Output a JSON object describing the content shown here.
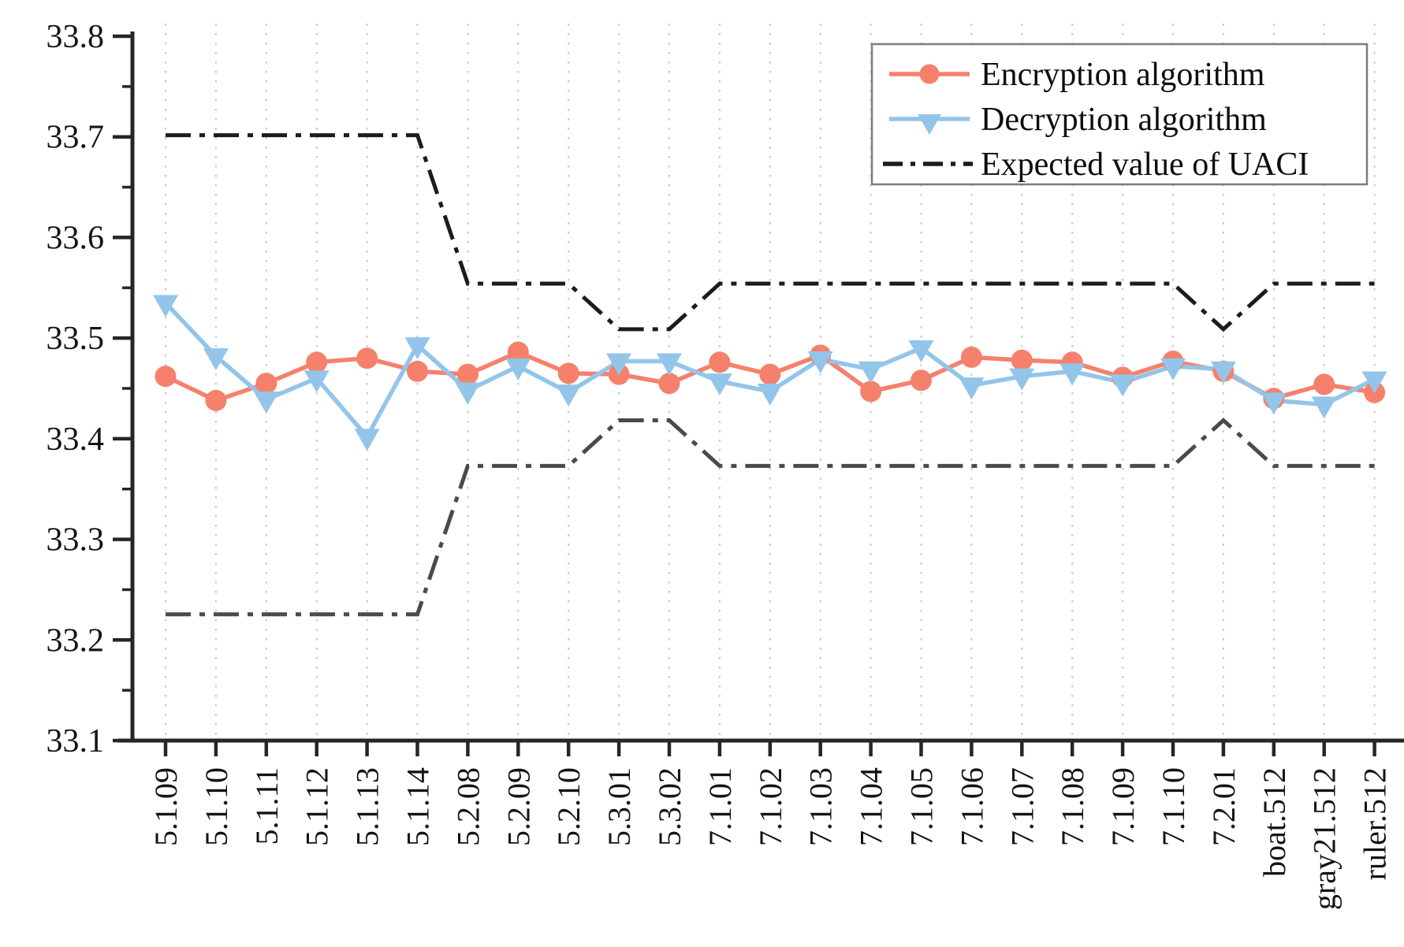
{
  "chart_data": {
    "type": "line",
    "title": "",
    "categories": [
      "5.1.09",
      "5.1.10",
      "5.1.11",
      "5.1.12",
      "5.1.13",
      "5.1.14",
      "5.2.08",
      "5.2.09",
      "5.2.10",
      "5.3.01",
      "5.3.02",
      "7.1.01",
      "7.1.02",
      "7.1.03",
      "7.1.04",
      "7.1.05",
      "7.1.06",
      "7.1.07",
      "7.1.08",
      "7.1.09",
      "7.1.10",
      "7.2.01",
      "boat.512",
      "gray21.512",
      "ruler.512"
    ],
    "series": [
      {
        "name": "Encryption algorithm",
        "marker": "circle",
        "color": "#F5816C",
        "values": [
          33.462,
          33.438,
          33.455,
          33.476,
          33.48,
          33.467,
          33.464,
          33.486,
          33.465,
          33.464,
          33.455,
          33.476,
          33.464,
          33.483,
          33.447,
          33.458,
          33.481,
          33.478,
          33.476,
          33.461,
          33.477,
          33.467,
          33.44,
          33.454,
          33.446
        ]
      },
      {
        "name": "Decryption algorithm",
        "marker": "triangle-down",
        "color": "#93C5EA",
        "values": [
          33.535,
          33.482,
          33.439,
          33.46,
          33.402,
          33.493,
          33.448,
          33.472,
          33.446,
          33.477,
          33.477,
          33.457,
          33.447,
          33.479,
          33.469,
          33.49,
          33.453,
          33.462,
          33.467,
          33.456,
          33.472,
          33.469,
          33.438,
          33.434,
          33.459
        ]
      }
    ],
    "expected_value": {
      "name": "Expected value of UACI",
      "line_style": "dash-dot",
      "upper_color": "#1c1c1c",
      "lower_color": "#4a4a4a",
      "upper": [
        33.7016,
        33.7016,
        33.7016,
        33.7016,
        33.7016,
        33.7016,
        33.5541,
        33.5541,
        33.5541,
        33.5088,
        33.5088,
        33.5541,
        33.5541,
        33.5541,
        33.5541,
        33.5541,
        33.5541,
        33.5541,
        33.5541,
        33.5541,
        33.5541,
        33.5088,
        33.5541,
        33.5541,
        33.5541
      ],
      "lower": [
        33.2255,
        33.2255,
        33.2255,
        33.2255,
        33.2255,
        33.2255,
        33.373,
        33.373,
        33.373,
        33.4183,
        33.4183,
        33.373,
        33.373,
        33.373,
        33.373,
        33.373,
        33.373,
        33.373,
        33.373,
        33.373,
        33.373,
        33.4183,
        33.373,
        33.373,
        33.373
      ]
    },
    "yaxis": {
      "min": 33.1,
      "max": 33.8,
      "major_step": 0.1,
      "minor_step": 0.05,
      "major_tick_labels": [
        "33.1",
        "33.2",
        "33.3",
        "33.4",
        "33.5",
        "33.6",
        "33.7",
        "33.8"
      ]
    },
    "xaxis": {
      "tick_label_rotation": -90
    },
    "legend": {
      "position": "top-right",
      "entries": [
        "Encryption algorithm",
        "Decryption algorithm",
        "Expected value of UACI"
      ]
    },
    "grid": {
      "vertical": "dotted",
      "color": "#c4c4c4"
    }
  }
}
